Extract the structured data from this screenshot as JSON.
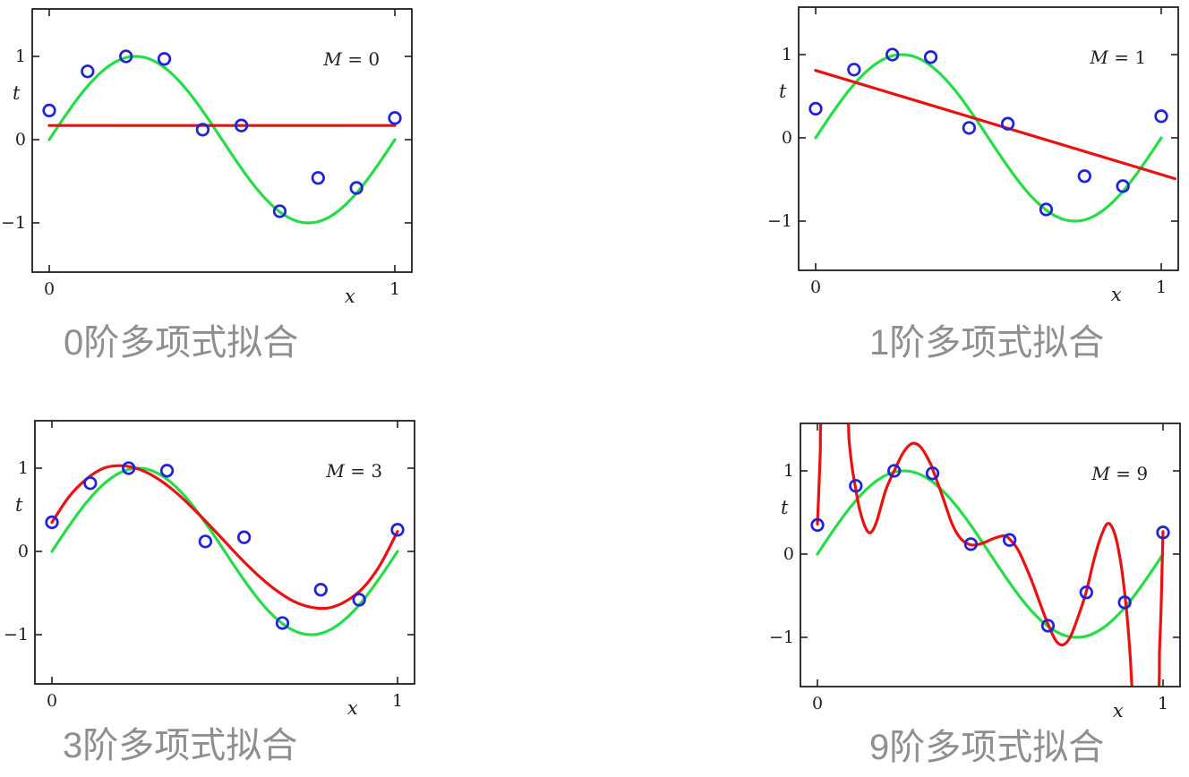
{
  "page": {
    "background": "#ffffff"
  },
  "style": {
    "axis_color": "#1f1f1f",
    "text_color": "#1f1f1f",
    "caption_color": "#8f8f8f",
    "truth_color": "#25dd48",
    "fit_color": "#ea1111",
    "marker_color": "#2222dd"
  },
  "chart_data": [
    {
      "type": "line",
      "m_label": "M = 0",
      "caption": "0阶多项式拟合",
      "xlabel": "x",
      "ylabel": "t",
      "xlim": [
        -0.05,
        1.05
      ],
      "ylim": [
        -1.58,
        1.58
      ],
      "x_ticks": [
        {
          "v": 0,
          "label": "0"
        },
        {
          "v": 1,
          "label": "1"
        }
      ],
      "y_ticks": [
        {
          "v": 1,
          "label": "1"
        },
        {
          "v": 0,
          "label": "0"
        },
        {
          "v": -1,
          "label": "−1"
        }
      ],
      "series": [
        {
          "name": "true-function-sin2pix",
          "role": "truth",
          "kind": "sine",
          "x_range": [
            0,
            1
          ]
        },
        {
          "name": "polynomial-fit-M0",
          "role": "fit",
          "kind": "samples",
          "points": [
            [
              0,
              0.17
            ],
            [
              1,
              0.17
            ]
          ]
        },
        {
          "name": "training-data",
          "role": "data",
          "kind": "scatter",
          "x": [
            0,
            0.111,
            0.222,
            0.333,
            0.444,
            0.556,
            0.667,
            0.778,
            0.889,
            1.0
          ],
          "t": [
            0.35,
            0.82,
            1.0,
            0.97,
            0.12,
            0.17,
            -0.86,
            -0.46,
            -0.58,
            0.26
          ]
        }
      ]
    },
    {
      "type": "line",
      "m_label": "M = 1",
      "caption": "1阶多项式拟合",
      "xlabel": "x",
      "ylabel": "t",
      "xlim": [
        -0.05,
        1.05
      ],
      "ylim": [
        -1.58,
        1.58
      ],
      "x_ticks": [
        {
          "v": 0,
          "label": "0"
        },
        {
          "v": 1,
          "label": "1"
        }
      ],
      "y_ticks": [
        {
          "v": 1,
          "label": "1"
        },
        {
          "v": 0,
          "label": "0"
        },
        {
          "v": -1,
          "label": "−1"
        }
      ],
      "series": [
        {
          "name": "true-function-sin2pix",
          "role": "truth",
          "kind": "sine",
          "x_range": [
            0,
            1
          ]
        },
        {
          "name": "polynomial-fit-M1",
          "role": "fit",
          "kind": "samples",
          "points": [
            [
              0,
              0.81
            ],
            [
              1.04,
              -0.49
            ]
          ]
        },
        {
          "name": "training-data",
          "role": "data",
          "kind": "scatter",
          "x": [
            0,
            0.111,
            0.222,
            0.333,
            0.444,
            0.556,
            0.667,
            0.778,
            0.889,
            1.0
          ],
          "t": [
            0.35,
            0.82,
            1.0,
            0.97,
            0.12,
            0.17,
            -0.86,
            -0.46,
            -0.58,
            0.26
          ]
        }
      ]
    },
    {
      "type": "line",
      "m_label": "M = 3",
      "caption": "3阶多项式拟合",
      "xlabel": "x",
      "ylabel": "t",
      "xlim": [
        -0.05,
        1.05
      ],
      "ylim": [
        -1.58,
        1.58
      ],
      "x_ticks": [
        {
          "v": 0,
          "label": "0"
        },
        {
          "v": 1,
          "label": "1"
        }
      ],
      "y_ticks": [
        {
          "v": 1,
          "label": "1"
        },
        {
          "v": 0,
          "label": "0"
        },
        {
          "v": -1,
          "label": "−1"
        }
      ],
      "series": [
        {
          "name": "true-function-sin2pix",
          "role": "truth",
          "kind": "sine",
          "x_range": [
            0,
            1
          ]
        },
        {
          "name": "polynomial-fit-M3",
          "role": "fit",
          "kind": "samples",
          "points": [
            [
              0,
              0.35
            ],
            [
              0.05,
              0.66
            ],
            [
              0.1,
              0.87
            ],
            [
              0.15,
              1.0
            ],
            [
              0.2,
              1.03
            ],
            [
              0.25,
              0.99
            ],
            [
              0.3,
              0.89
            ],
            [
              0.35,
              0.74
            ],
            [
              0.4,
              0.55
            ],
            [
              0.45,
              0.34
            ],
            [
              0.5,
              0.12
            ],
            [
              0.55,
              -0.1
            ],
            [
              0.6,
              -0.3
            ],
            [
              0.65,
              -0.47
            ],
            [
              0.7,
              -0.6
            ],
            [
              0.75,
              -0.67
            ],
            [
              0.8,
              -0.68
            ],
            [
              0.85,
              -0.6
            ],
            [
              0.9,
              -0.44
            ],
            [
              0.95,
              -0.16
            ],
            [
              1,
              0.24
            ]
          ]
        },
        {
          "name": "training-data",
          "role": "data",
          "kind": "scatter",
          "x": [
            0,
            0.111,
            0.222,
            0.333,
            0.444,
            0.556,
            0.667,
            0.778,
            0.889,
            1.0
          ],
          "t": [
            0.35,
            0.82,
            1.0,
            0.97,
            0.12,
            0.17,
            -0.86,
            -0.46,
            -0.58,
            0.26
          ]
        }
      ]
    },
    {
      "type": "line",
      "m_label": "M = 9",
      "caption": "9阶多项式拟合",
      "xlabel": "x",
      "ylabel": "t",
      "xlim": [
        -0.05,
        1.05
      ],
      "ylim": [
        -1.58,
        1.58
      ],
      "x_ticks": [
        {
          "v": 0,
          "label": "0"
        },
        {
          "v": 1,
          "label": "1"
        }
      ],
      "y_ticks": [
        {
          "v": 1,
          "label": "1"
        },
        {
          "v": 0,
          "label": "0"
        },
        {
          "v": -1,
          "label": "−1"
        }
      ],
      "series": [
        {
          "name": "true-function-sin2pix",
          "role": "truth",
          "kind": "sine",
          "x_range": [
            0,
            1
          ]
        },
        {
          "name": "polynomial-fit-M9",
          "role": "fit",
          "kind": "samples",
          "points": [
            [
              0,
              0.36
            ],
            [
              0.004,
              0.75
            ],
            [
              0.008,
              1.2
            ],
            [
              0.013,
              1.75
            ],
            [
              0.05,
              2.6
            ],
            [
              0.085,
              1.75
            ],
            [
              0.092,
              1.35
            ],
            [
              0.1,
              1.05
            ],
            [
              0.108,
              0.85
            ],
            [
              0.122,
              0.54
            ],
            [
              0.14,
              0.31
            ],
            [
              0.155,
              0.26
            ],
            [
              0.172,
              0.4
            ],
            [
              0.197,
              0.76
            ],
            [
              0.222,
              1.0
            ],
            [
              0.25,
              1.23
            ],
            [
              0.275,
              1.33
            ],
            [
              0.3,
              1.28
            ],
            [
              0.328,
              1.08
            ],
            [
              0.335,
              1.0
            ],
            [
              0.363,
              0.68
            ],
            [
              0.39,
              0.36
            ],
            [
              0.416,
              0.18
            ],
            [
              0.446,
              0.11
            ],
            [
              0.477,
              0.13
            ],
            [
              0.512,
              0.19
            ],
            [
              0.54,
              0.22
            ],
            [
              0.556,
              0.18
            ],
            [
              0.582,
              0.04
            ],
            [
              0.617,
              -0.29
            ],
            [
              0.643,
              -0.58
            ],
            [
              0.667,
              -0.84
            ],
            [
              0.69,
              -1.04
            ],
            [
              0.71,
              -1.09
            ],
            [
              0.731,
              -1.0
            ],
            [
              0.757,
              -0.72
            ],
            [
              0.778,
              -0.45
            ],
            [
              0.8,
              -0.07
            ],
            [
              0.822,
              0.23
            ],
            [
              0.842,
              0.37
            ],
            [
              0.862,
              0.22
            ],
            [
              0.879,
              -0.14
            ],
            [
              0.889,
              -0.47
            ],
            [
              0.897,
              -0.79
            ],
            [
              0.905,
              -1.22
            ],
            [
              0.915,
              -1.8
            ],
            [
              0.95,
              -2.6
            ],
            [
              0.985,
              -1.8
            ],
            [
              0.99,
              -1.15
            ],
            [
              0.994,
              -0.7
            ],
            [
              0.997,
              -0.22
            ],
            [
              1,
              0.27
            ]
          ]
        },
        {
          "name": "training-data",
          "role": "data",
          "kind": "scatter",
          "x": [
            0,
            0.111,
            0.222,
            0.333,
            0.444,
            0.556,
            0.667,
            0.778,
            0.889,
            1.0
          ],
          "t": [
            0.35,
            0.82,
            1.0,
            0.97,
            0.12,
            0.17,
            -0.86,
            -0.46,
            -0.58,
            0.26
          ]
        }
      ]
    }
  ]
}
